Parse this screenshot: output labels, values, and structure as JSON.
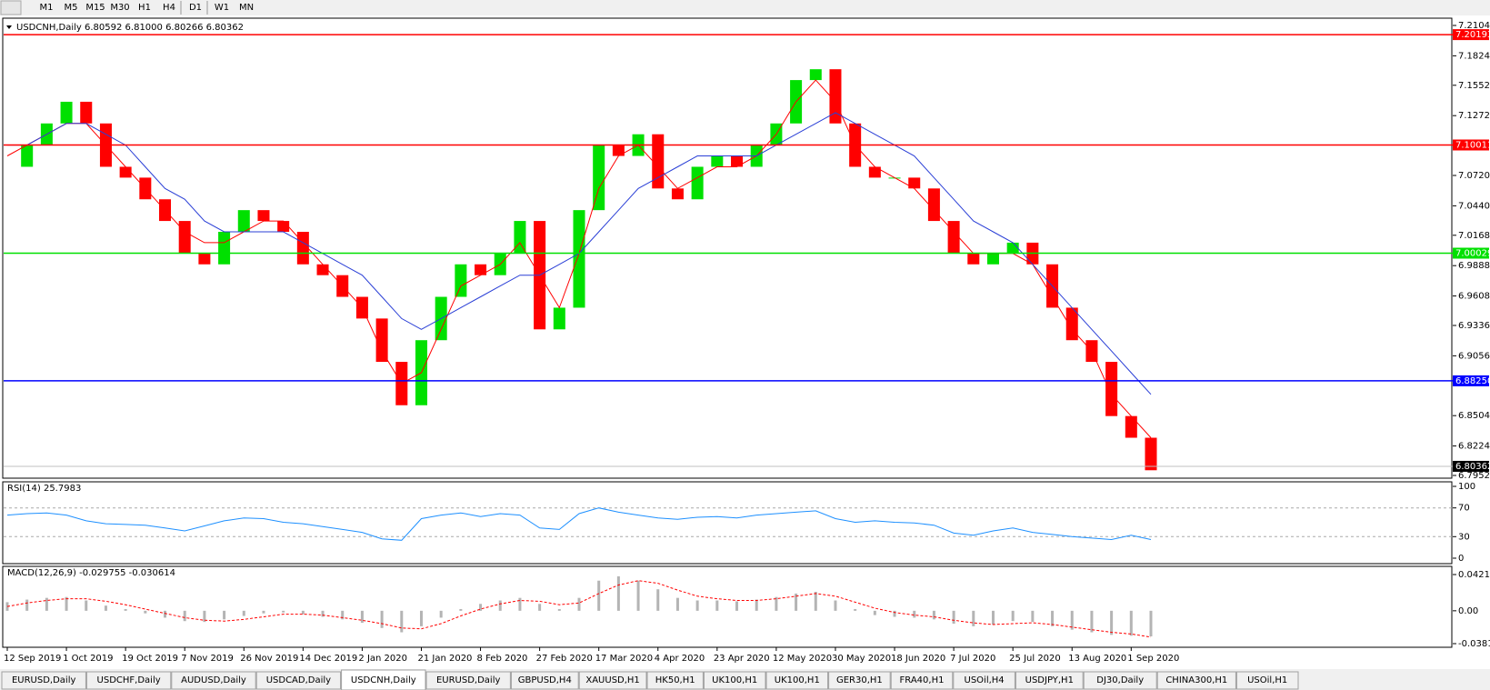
{
  "toolbar": {
    "timeframes": [
      "M1",
      "M5",
      "M15",
      "M30",
      "H1",
      "H4",
      "D1",
      "W1",
      "MN"
    ]
  },
  "chart": {
    "header": "USDCNH,Daily  6.80592 6.81000 6.80266 6.80362",
    "x_labels": [
      "12 Sep 2019",
      "1 Oct 2019",
      "19 Oct 2019",
      "7 Nov 2019",
      "26 Nov 2019",
      "14 Dec 2019",
      "2 Jan 2020",
      "21 Jan 2020",
      "8 Feb 2020",
      "27 Feb 2020",
      "17 Mar 2020",
      "4 Apr 2020",
      "23 Apr 2020",
      "12 May 2020",
      "30 May 2020",
      "18 Jun 2020",
      "7 Jul 2020",
      "25 Jul 2020",
      "13 Aug 2020",
      "1 Sep 2020"
    ],
    "price": {
      "ylim": [
        6.7952,
        7.2104
      ],
      "yticks": [
        {
          "value": 7.2104,
          "label": "7.21040"
        },
        {
          "value": 7.1824,
          "label": "7.18240"
        },
        {
          "value": 7.1552,
          "label": "7.15520"
        },
        {
          "value": 7.1272,
          "label": "7.12720"
        },
        {
          "value": 7.072,
          "label": "7.07200"
        },
        {
          "value": 7.044,
          "label": "7.04400"
        },
        {
          "value": 7.0168,
          "label": "7.01680"
        },
        {
          "value": 6.9888,
          "label": "6.98880"
        },
        {
          "value": 6.9608,
          "label": "6.96080"
        },
        {
          "value": 6.9336,
          "label": "6.93360"
        },
        {
          "value": 6.9056,
          "label": "6.90560"
        },
        {
          "value": 6.8504,
          "label": "6.85040"
        },
        {
          "value": 6.8224,
          "label": "6.82240"
        },
        {
          "value": 6.7952,
          "label": "6.79520"
        }
      ],
      "levels": [
        {
          "value": 7.20193,
          "color": "#ff0000"
        },
        {
          "value": 7.10011,
          "color": "#ff0000"
        },
        {
          "value": 7.00029,
          "color": "#00e000"
        },
        {
          "value": {
            "value": 6.8825,
            "label": "6.88250"
          },
          "color": "#0000ff"
        }
      ],
      "current": 6.80362,
      "closes": [
        7.08,
        7.1,
        7.12,
        7.14,
        7.12,
        7.08,
        7.07,
        7.05,
        7.03,
        7.0,
        6.99,
        7.02,
        7.04,
        7.03,
        7.02,
        6.99,
        6.98,
        6.96,
        6.94,
        6.9,
        6.86,
        6.92,
        6.96,
        6.99,
        6.98,
        7.0,
        7.03,
        6.93,
        6.95,
        7.04,
        7.1,
        7.09,
        7.11,
        7.06,
        7.05,
        7.08,
        7.09,
        7.08,
        7.1,
        7.12,
        7.16,
        7.17,
        7.12,
        7.08,
        7.07,
        7.07,
        7.06,
        7.03,
        7.0,
        6.99,
        7.0,
        7.01,
        6.99,
        6.95,
        6.92,
        6.9,
        6.85,
        6.83,
        6.8
      ],
      "up_color": "#00e000",
      "down_color": "#ff0000",
      "ma": [
        {
          "color": "#ff0000",
          "values": [
            7.09,
            7.1,
            7.11,
            7.12,
            7.12,
            7.1,
            7.08,
            7.06,
            7.04,
            7.02,
            7.01,
            7.01,
            7.02,
            7.03,
            7.03,
            7.01,
            6.99,
            6.97,
            6.95,
            6.91,
            6.88,
            6.89,
            6.93,
            6.97,
            6.98,
            6.99,
            7.01,
            6.98,
            6.95,
            7.0,
            7.06,
            7.09,
            7.1,
            7.08,
            7.06,
            7.07,
            7.08,
            7.08,
            7.09,
            7.11,
            7.14,
            7.16,
            7.14,
            7.1,
            7.08,
            7.07,
            7.06,
            7.04,
            7.02,
            7.0,
            7.0,
            7.0,
            6.99,
            6.96,
            6.93,
            6.91,
            6.87,
            6.85,
            6.83
          ]
        },
        {
          "color": "#2a3fd6",
          "values": [
            7.1,
            7.1,
            7.11,
            7.12,
            7.12,
            7.11,
            7.1,
            7.08,
            7.06,
            7.05,
            7.03,
            7.02,
            7.02,
            7.02,
            7.02,
            7.01,
            7.0,
            6.99,
            6.98,
            6.96,
            6.94,
            6.93,
            6.94,
            6.95,
            6.96,
            6.97,
            6.98,
            6.98,
            6.99,
            7.0,
            7.02,
            7.04,
            7.06,
            7.07,
            7.08,
            7.09,
            7.09,
            7.09,
            7.09,
            7.1,
            7.11,
            7.12,
            7.13,
            7.12,
            7.11,
            7.1,
            7.09,
            7.07,
            7.05,
            7.03,
            7.02,
            7.01,
            6.99,
            6.97,
            6.95,
            6.93,
            6.91,
            6.89,
            6.87
          ]
        }
      ]
    },
    "rsi": {
      "label": "RSI(14) 25.7983",
      "ylim": [
        0,
        100
      ],
      "yticks": [
        100,
        70,
        30,
        0
      ],
      "levels": [
        70,
        30
      ],
      "color": "#1e90ff",
      "values": [
        60,
        62,
        63,
        60,
        52,
        48,
        47,
        46,
        42,
        38,
        45,
        52,
        56,
        55,
        50,
        48,
        44,
        40,
        36,
        27,
        25,
        55,
        60,
        63,
        58,
        62,
        60,
        42,
        40,
        62,
        70,
        64,
        60,
        56,
        54,
        57,
        58,
        56,
        60,
        62,
        64,
        66,
        55,
        50,
        52,
        50,
        49,
        46,
        35,
        32,
        38,
        42,
        36,
        33,
        30,
        28,
        26,
        32,
        26
      ]
    },
    "macd": {
      "label": "MACD(12,26,9) -0.029755 -0.030614",
      "ylim": [
        -0.038198,
        0.042118
      ],
      "yticks": [
        0.042118,
        {
          "value": 0,
          "label": "0.00"
        },
        -0.038198
      ],
      "hist_color": "#b4b4b4",
      "signal_color": "#ff0000",
      "values": [
        0.01,
        0.013,
        0.015,
        0.016,
        0.012,
        0.006,
        0.002,
        -0.003,
        -0.008,
        -0.012,
        -0.013,
        -0.01,
        -0.006,
        -0.003,
        -0.002,
        -0.004,
        -0.007,
        -0.01,
        -0.014,
        -0.02,
        -0.025,
        -0.018,
        -0.008,
        0.002,
        0.008,
        0.012,
        0.015,
        0.008,
        0.002,
        0.015,
        0.035,
        0.04,
        0.035,
        0.025,
        0.015,
        0.012,
        0.012,
        0.011,
        0.013,
        0.016,
        0.02,
        0.022,
        0.012,
        0.002,
        -0.005,
        -0.007,
        -0.008,
        -0.01,
        -0.015,
        -0.018,
        -0.016,
        -0.012,
        -0.013,
        -0.018,
        -0.022,
        -0.025,
        -0.028,
        -0.029,
        -0.029755
      ],
      "signal": [
        0.005,
        0.009,
        0.012,
        0.014,
        0.014,
        0.011,
        0.007,
        0.002,
        -0.003,
        -0.008,
        -0.011,
        -0.012,
        -0.01,
        -0.007,
        -0.004,
        -0.004,
        -0.005,
        -0.008,
        -0.011,
        -0.015,
        -0.02,
        -0.021,
        -0.015,
        -0.006,
        0.002,
        0.008,
        0.012,
        0.011,
        0.007,
        0.009,
        0.02,
        0.03,
        0.035,
        0.032,
        0.024,
        0.017,
        0.014,
        0.012,
        0.012,
        0.014,
        0.017,
        0.02,
        0.017,
        0.01,
        0.003,
        -0.002,
        -0.005,
        -0.007,
        -0.011,
        -0.014,
        -0.016,
        -0.015,
        -0.014,
        -0.016,
        -0.019,
        -0.022,
        -0.025,
        -0.027,
        -0.030614
      ]
    }
  },
  "tabs": {
    "items": [
      "EURUSD,Daily",
      "USDCHF,Daily",
      "AUDUSD,Daily",
      "USDCAD,Daily",
      "USDCNH,Daily",
      "EURUSD,Daily",
      "GBPUSD,H4",
      "XAUUSD,H1",
      "HK50,H1",
      "UK100,H1",
      "UK100,H1",
      "GER30,H1",
      "FRA40,H1",
      "USOil,H4",
      "USDJPY,H1",
      "DJ30,Daily",
      "CHINA300,H1",
      "USOil,H1"
    ],
    "active": 4
  }
}
